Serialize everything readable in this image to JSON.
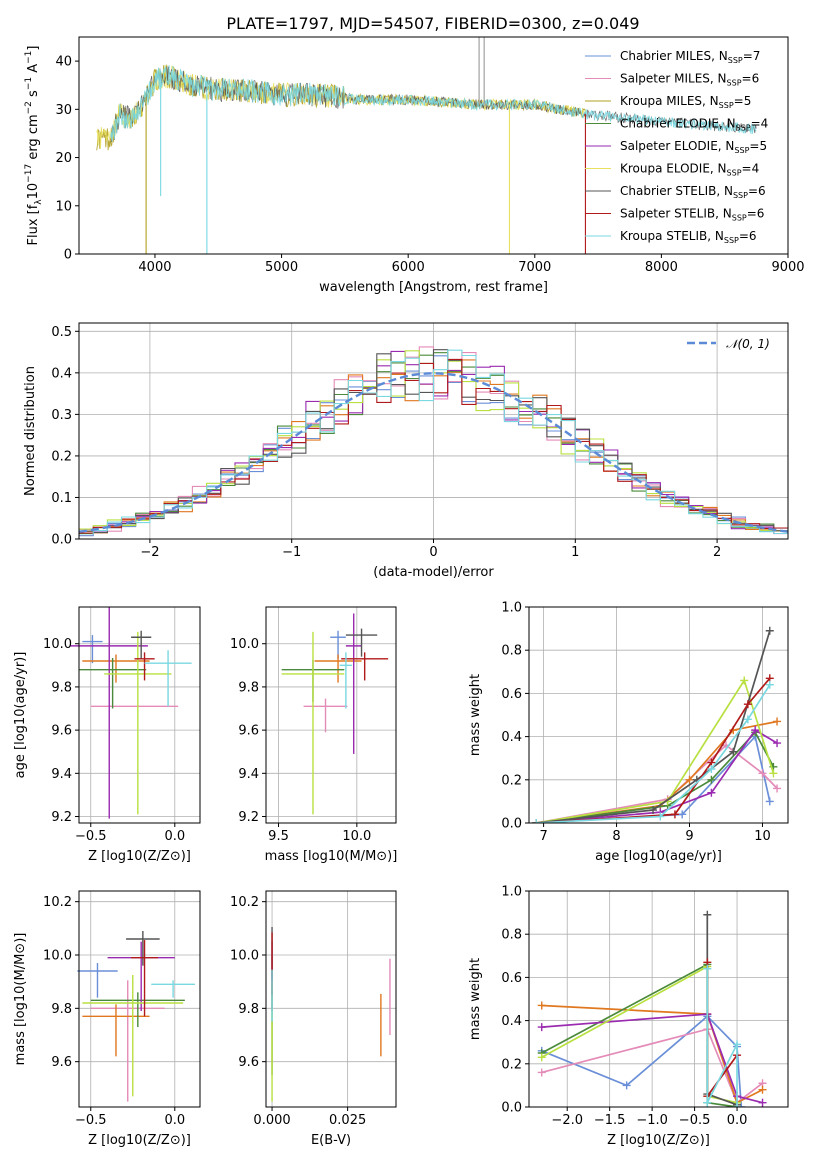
{
  "figure": {
    "title": "PLATE=1797, MJD=54507, FIBERID=0300, z=0.049"
  },
  "colors": {
    "Chabrier MILES": "#6a8fd8",
    "Salpeter MILES": "#e48bb8",
    "Kroupa MILES": "#b0a020",
    "Chabrier ELODIE": "#4a8a3a",
    "Salpeter ELODIE": "#9a2ab0",
    "Kroupa ELODIE": "#e8e060",
    "Chabrier STELIB": "#555555",
    "Salpeter STELIB": "#b01a1a",
    "Kroupa STELIB": "#7ad8e0",
    "orange": "#e07820",
    "lime": "#b8e040",
    "gauss": "#5b8bd6"
  },
  "chart_data": [
    {
      "id": "spectrum",
      "type": "line",
      "xlabel": "wavelength [Angstrom, rest frame]",
      "ylabel": "Flux [f_λ10^-17 erg cm^-2 s^-1 A^-1]",
      "xlim": [
        3400,
        9000
      ],
      "ylim": [
        0,
        45
      ],
      "xticks": [
        "4000",
        "5000",
        "6000",
        "7000",
        "8000",
        "9000"
      ],
      "yticks": [
        "0",
        "10",
        "20",
        "30",
        "40"
      ],
      "legend_position": "top-right",
      "series": [
        {
          "name": "Chabrier MILES",
          "nssp": "7"
        },
        {
          "name": "Salpeter MILES",
          "nssp": "6"
        },
        {
          "name": "Kroupa MILES",
          "nssp": "5"
        },
        {
          "name": "Chabrier ELODIE",
          "nssp": "4"
        },
        {
          "name": "Salpeter ELODIE",
          "nssp": "5"
        },
        {
          "name": "Kroupa ELODIE",
          "nssp": "4"
        },
        {
          "name": "Chabrier STELIB",
          "nssp": "6"
        },
        {
          "name": "Salpeter STELIB",
          "nssp": "6"
        },
        {
          "name": "Kroupa STELIB",
          "nssp": "6"
        }
      ],
      "continuum": {
        "x": [
          3650,
          3720,
          3800,
          3900,
          4000,
          4100,
          4300,
          4500,
          4700,
          5000,
          5300,
          5600,
          6000,
          6500,
          7000,
          7400,
          7800,
          8200,
          8700
        ],
        "y": [
          24,
          29,
          28,
          31,
          36,
          37,
          35,
          34,
          34,
          33,
          33,
          32,
          32,
          31,
          31,
          29,
          28,
          27,
          26
        ]
      }
    },
    {
      "id": "residuals",
      "type": "line",
      "xlabel": "(data-model)/error",
      "ylabel": "Normed distribution",
      "xlim": [
        -2.5,
        2.5
      ],
      "ylim": [
        0,
        0.52
      ],
      "xticks": [
        "−2",
        "−1",
        "0",
        "1",
        "2"
      ],
      "yticks": [
        "0.0",
        "0.1",
        "0.2",
        "0.3",
        "0.4",
        "0.5"
      ],
      "legend": "𝒩(0, 1)",
      "legend_position": "top-right",
      "gaussian": {
        "mean": 0,
        "sigma": 1
      },
      "bin_width": 0.1
    },
    {
      "id": "age-vs-Z",
      "type": "scatter",
      "xlabel": "Z [log10(Z/Z⊙)]",
      "ylabel": "age [log10(age/yr)]",
      "xlim": [
        -0.57,
        0.15
      ],
      "ylim": [
        9.17,
        10.17
      ],
      "xticks": [
        "−0.5",
        "0.0"
      ],
      "yticks": [
        "9.2",
        "9.4",
        "9.6",
        "9.8",
        "10.0"
      ]
    },
    {
      "id": "age-vs-mass",
      "type": "scatter",
      "xlabel": "mass [log10(M/M⊙)]",
      "xlim": [
        9.42,
        10.25
      ],
      "ylim": [
        9.17,
        10.17
      ],
      "xticks": [
        "9.5",
        "10.0"
      ],
      "yticks": [
        "9.2",
        "9.4",
        "9.6",
        "9.8",
        "10.0"
      ]
    },
    {
      "id": "weight-vs-age",
      "type": "line",
      "xlabel": "age [log10(age/yr)]",
      "ylabel": "mass weight",
      "xlim": [
        6.8,
        10.35
      ],
      "ylim": [
        0,
        1
      ],
      "xticks": [
        "7",
        "8",
        "9",
        "10"
      ],
      "yticks": [
        "0.0",
        "0.2",
        "0.4",
        "0.6",
        "0.8",
        "1.0"
      ],
      "series": [
        {
          "color": "#6a8fd8",
          "x": [
            6.9,
            8.9,
            9.9,
            10.1
          ],
          "y": [
            0.0,
            0.04,
            0.4,
            0.1
          ]
        },
        {
          "color": "#e48bb8",
          "x": [
            6.9,
            8.7,
            9.5,
            10.0,
            10.2
          ],
          "y": [
            0.0,
            0.11,
            0.36,
            0.23,
            0.16
          ]
        },
        {
          "color": "#e07820",
          "x": [
            6.9,
            8.6,
            9.0,
            9.6,
            10.2
          ],
          "y": [
            0.0,
            0.08,
            0.2,
            0.43,
            0.47
          ]
        },
        {
          "color": "#4a8a3a",
          "x": [
            6.9,
            8.7,
            9.3,
            9.9,
            10.15
          ],
          "y": [
            0.0,
            0.08,
            0.2,
            0.42,
            0.26
          ]
        },
        {
          "color": "#9a2ab0",
          "x": [
            6.9,
            8.6,
            9.3,
            9.9,
            10.2
          ],
          "y": [
            0.0,
            0.05,
            0.14,
            0.43,
            0.37
          ]
        },
        {
          "color": "#b8e040",
          "x": [
            6.9,
            8.7,
            9.75,
            10.15
          ],
          "y": [
            0.0,
            0.1,
            0.66,
            0.23
          ]
        },
        {
          "color": "#555555",
          "x": [
            6.9,
            8.5,
            9.1,
            9.6,
            10.1
          ],
          "y": [
            0.0,
            0.06,
            0.2,
            0.33,
            0.89
          ]
        },
        {
          "color": "#b01a1a",
          "x": [
            6.9,
            8.8,
            9.3,
            9.8,
            10.1
          ],
          "y": [
            0.0,
            0.04,
            0.28,
            0.55,
            0.67
          ]
        },
        {
          "color": "#7ad8e0",
          "x": [
            6.9,
            8.6,
            9.3,
            9.8,
            10.1
          ],
          "y": [
            0.0,
            0.03,
            0.25,
            0.48,
            0.64
          ]
        }
      ]
    },
    {
      "id": "mass-vs-Z",
      "type": "scatter",
      "xlabel": "Z [log10(Z/Z⊙)]",
      "ylabel": "mass [log10(M/M⊙)]",
      "xlim": [
        -0.57,
        0.15
      ],
      "ylim": [
        9.43,
        10.24
      ],
      "xticks": [
        "−0.5",
        "0.0"
      ],
      "yticks": [
        "9.6",
        "9.8",
        "10.0",
        "10.2"
      ]
    },
    {
      "id": "mass-vs-EBV",
      "type": "scatter",
      "xlabel": "E(B-V)",
      "xlim": [
        -0.002,
        0.041
      ],
      "ylim": [
        9.43,
        10.24
      ],
      "xticks": [
        "0.000",
        "0.025"
      ],
      "yticks": [
        "9.6",
        "9.8",
        "10.0",
        "10.2"
      ]
    },
    {
      "id": "weight-vs-Z",
      "type": "line",
      "xlabel": "Z [log10(Z/Z⊙)]",
      "ylabel": "mass weight",
      "xlim": [
        -2.45,
        0.6
      ],
      "ylim": [
        0,
        1
      ],
      "xticks": [
        "−2.0",
        "−1.5",
        "−1.0",
        "−0.5",
        "0.0"
      ],
      "yticks": [
        "0.0",
        "0.2",
        "0.4",
        "0.6",
        "0.8",
        "1.0"
      ],
      "series": [
        {
          "color": "#6a8fd8",
          "x": [
            -2.3,
            -1.3,
            -0.35,
            0.0,
            0.05
          ],
          "y": [
            0.26,
            0.1,
            0.42,
            0.28,
            0.0
          ]
        },
        {
          "color": "#e48bb8",
          "x": [
            -2.3,
            -0.35,
            0.0,
            0.3
          ],
          "y": [
            0.16,
            0.36,
            0.02,
            0.11
          ]
        },
        {
          "color": "#e07820",
          "x": [
            -2.3,
            -0.35,
            0.0,
            0.3
          ],
          "y": [
            0.47,
            0.43,
            0.02,
            0.08
          ]
        },
        {
          "color": "#4a8a3a",
          "x": [
            -2.3,
            -0.35,
            -0.35,
            0.0
          ],
          "y": [
            0.25,
            0.66,
            0.02,
            0.0
          ]
        },
        {
          "color": "#9a2ab0",
          "x": [
            -2.3,
            -0.35,
            0.0,
            0.3
          ],
          "y": [
            0.37,
            0.43,
            0.05,
            0.02
          ]
        },
        {
          "color": "#b8e040",
          "x": [
            -2.3,
            -0.35,
            -0.35,
            0.0
          ],
          "y": [
            0.23,
            0.65,
            0.05,
            0.02
          ]
        },
        {
          "color": "#555555",
          "x": [
            -0.35,
            -0.35,
            0.0
          ],
          "y": [
            0.89,
            0.06,
            0.01
          ]
        },
        {
          "color": "#b01a1a",
          "x": [
            -0.35,
            -0.35,
            0.0
          ],
          "y": [
            0.67,
            0.05,
            0.24
          ]
        },
        {
          "color": "#7ad8e0",
          "x": [
            -0.35,
            -0.35,
            0.0,
            0.0
          ],
          "y": [
            0.64,
            0.02,
            0.29,
            0.0
          ]
        }
      ]
    }
  ],
  "errorbars": {
    "age_Z": [
      {
        "c": "#6a8fd8",
        "x": -0.49,
        "xe": 0.06,
        "y": 10.01,
        "ye": 0.1
      },
      {
        "c": "#e48bb8",
        "x": -0.24,
        "xe": 0.26,
        "y": 9.71,
        "ye": 0.0
      },
      {
        "c": "#e07820",
        "x": -0.35,
        "xe": 0.2,
        "y": 9.92,
        "ye": 0.1
      },
      {
        "c": "#4a8a3a",
        "x": -0.37,
        "xe": 0.2,
        "y": 9.88,
        "ye": 0.18
      },
      {
        "c": "#9a2ab0",
        "x": -0.39,
        "xe": 0.23,
        "y": 9.99,
        "ye": 0.8
      },
      {
        "c": "#b8e040",
        "x": -0.22,
        "xe": 0.2,
        "y": 9.86,
        "ye": 0.65
      },
      {
        "c": "#555555",
        "x": -0.2,
        "xe": 0.06,
        "y": 10.03,
        "ye": 0.1
      },
      {
        "c": "#b01a1a",
        "x": -0.18,
        "xe": 0.06,
        "y": 9.93,
        "ye": 0.1
      },
      {
        "c": "#7ad8e0",
        "x": -0.04,
        "xe": 0.14,
        "y": 9.91,
        "ye": 0.2
      }
    ],
    "age_mass": [
      {
        "c": "#6a8fd8",
        "x": 9.88,
        "xe": 0.05,
        "y": 10.03,
        "ye": 0.1
      },
      {
        "c": "#e48bb8",
        "x": 9.8,
        "xe": 0.14,
        "y": 9.71,
        "ye": 0.12
      },
      {
        "c": "#e07820",
        "x": 9.88,
        "xe": 0.15,
        "y": 9.92,
        "ye": 0.1
      },
      {
        "c": "#4a8a3a",
        "x": 9.72,
        "xe": 0.2,
        "y": 9.88,
        "ye": 0.15
      },
      {
        "c": "#9a2ab0",
        "x": 9.98,
        "xe": 0.05,
        "y": 9.99,
        "ye": 0.5
      },
      {
        "c": "#b8e040",
        "x": 9.72,
        "xe": 0.2,
        "y": 9.86,
        "ye": 0.65
      },
      {
        "c": "#555555",
        "x": 10.03,
        "xe": 0.1,
        "y": 10.04,
        "ye": 0.1
      },
      {
        "c": "#b01a1a",
        "x": 10.05,
        "xe": 0.15,
        "y": 9.93,
        "ye": 0.1
      },
      {
        "c": "#7ad8e0",
        "x": 9.93,
        "xe": 0.04,
        "y": 9.9,
        "ye": 0.2
      }
    ],
    "mass_Z": [
      {
        "c": "#6a8fd8",
        "x": -0.46,
        "xe": 0.12,
        "y": 9.94,
        "ye": 0.1
      },
      {
        "c": "#e48bb8",
        "x": -0.28,
        "xe": 0.22,
        "y": 9.8,
        "ye": 0.35
      },
      {
        "c": "#e07820",
        "x": -0.35,
        "xe": 0.2,
        "y": 9.77,
        "ye": 0.15
      },
      {
        "c": "#4a8a3a",
        "x": -0.22,
        "xe": 0.28,
        "y": 9.83,
        "ye": 0.1
      },
      {
        "c": "#9a2ab0",
        "x": -0.2,
        "xe": 0.2,
        "y": 9.99,
        "ye": 0.2
      },
      {
        "c": "#b8e040",
        "x": -0.25,
        "xe": 0.3,
        "y": 9.82,
        "ye": 0.35
      },
      {
        "c": "#555555",
        "x": -0.19,
        "xe": 0.1,
        "y": 10.06,
        "ye": 0.1
      },
      {
        "c": "#b01a1a",
        "x": -0.18,
        "xe": 0.08,
        "y": 9.99,
        "ye": 0.22
      },
      {
        "c": "#7ad8e0",
        "x": -0.01,
        "xe": 0.13,
        "y": 9.89,
        "ye": 0.05
      }
    ],
    "mass_ebv": [
      {
        "c": "#6a8fd8",
        "x": 0.0,
        "xe": 0.0,
        "y": 9.95,
        "ye": 0.15
      },
      {
        "c": "#e48bb8",
        "x": 0.039,
        "xe": 0.0,
        "y": 9.92,
        "ye": 0.22
      },
      {
        "c": "#e07820",
        "x": 0.036,
        "xe": 0.0,
        "y": 9.8,
        "ye": 0.18
      },
      {
        "c": "#4a8a3a",
        "x": 0.0,
        "xe": 0.0,
        "y": 9.85,
        "ye": 0.3
      },
      {
        "c": "#9a2ab0",
        "x": 0.0,
        "xe": 0.0,
        "y": 9.99,
        "ye": 0.2
      },
      {
        "c": "#b8e040",
        "x": 0.0,
        "xe": 0.0,
        "y": 9.8,
        "ye": 0.35
      },
      {
        "c": "#555555",
        "x": 0.0,
        "xe": 0.0,
        "y": 10.06,
        "ye": 0.15
      },
      {
        "c": "#b01a1a",
        "x": 0.0,
        "xe": 0.0,
        "y": 10.03,
        "ye": 0.18
      },
      {
        "c": "#7ad8e0",
        "x": 0.0,
        "xe": 0.0,
        "y": 9.9,
        "ye": 0.15
      }
    ]
  }
}
